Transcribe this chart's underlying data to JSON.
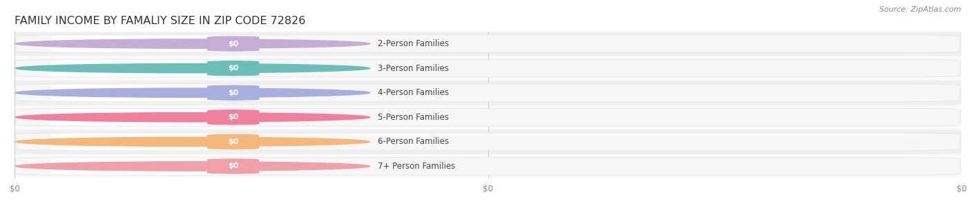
{
  "title": "FAMILY INCOME BY FAMALIY SIZE IN ZIP CODE 72826",
  "source": "Source: ZipAtlas.com",
  "categories": [
    "2-Person Families",
    "3-Person Families",
    "4-Person Families",
    "5-Person Families",
    "6-Person Families",
    "7+ Person Families"
  ],
  "values": [
    0,
    0,
    0,
    0,
    0,
    0
  ],
  "bar_colors": [
    "#c4aed4",
    "#6bbfb8",
    "#a8aedd",
    "#f07fa0",
    "#f5b87a",
    "#f0a0a8"
  ],
  "label_bg_colors": [
    "#f5f0fa",
    "#e5f8f5",
    "#eceeff",
    "#fde8f0",
    "#fef0e0",
    "#fde8ea"
  ],
  "dot_colors": [
    "#c4aed4",
    "#6bbfb8",
    "#a8aedd",
    "#f07fa0",
    "#f5b87a",
    "#f0a0a8"
  ],
  "track_bg": "#f7f7f8",
  "track_border": "#e8e8ea",
  "row_colors": [
    "#f0f0f2",
    "#fafafa"
  ],
  "background_color": "#ffffff",
  "xtick_labels": [
    "$0",
    "$0",
    "$0"
  ],
  "xtick_positions": [
    0.0,
    0.5,
    1.0
  ],
  "title_fontsize": 11.5,
  "label_fontsize": 8.5,
  "tick_fontsize": 8.5,
  "value_fontsize": 8.0,
  "source_fontsize": 8.0
}
